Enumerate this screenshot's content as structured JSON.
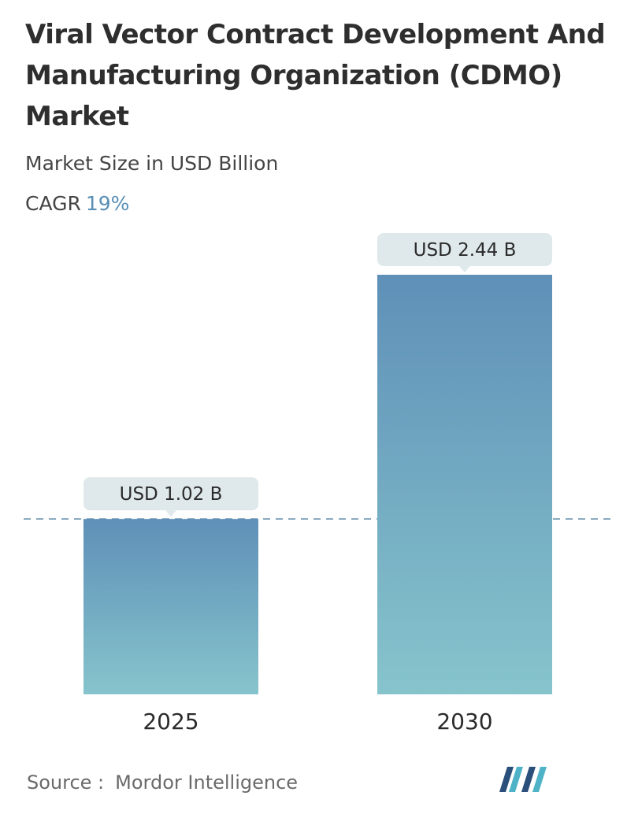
{
  "header": {
    "title": "Viral Vector Contract Development And Manufacturing Organization (CDMO) Market",
    "subtitle": "Market Size in USD Billion",
    "cagr_label": "CAGR",
    "cagr_value": "19%"
  },
  "chart_data": {
    "type": "bar",
    "categories": [
      "2025",
      "2030"
    ],
    "values": [
      1.02,
      2.44
    ],
    "data_labels": [
      "USD 1.02 B",
      "USD 2.44 B"
    ],
    "ylim": [
      0,
      2.44
    ],
    "grid": false,
    "reference_line": 1.02,
    "colors": {
      "bar_top": "#5f90b8",
      "bar_bottom": "#86c4cc",
      "label_bg": "#dfe9ec",
      "reference_line": "#5f8aa8"
    }
  },
  "footer": {
    "source_label": "Source :",
    "source_value": "Mordor Intelligence",
    "logo_icon": "mordor-intelligence-logo"
  }
}
